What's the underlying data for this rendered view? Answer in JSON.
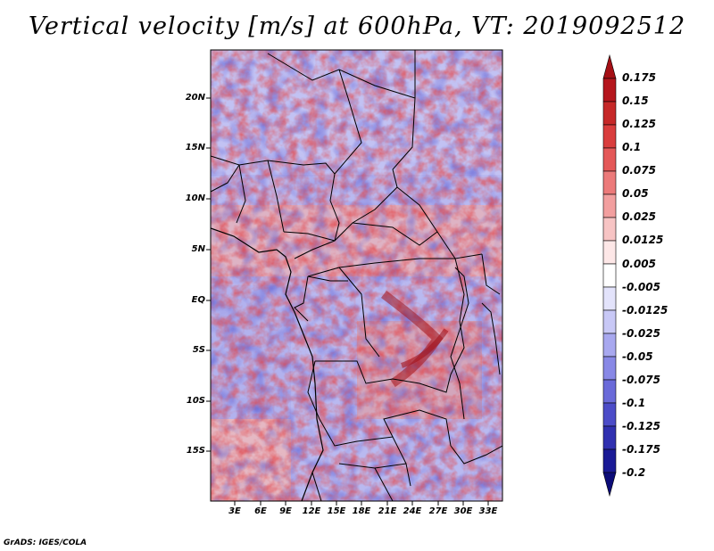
{
  "title": "Vertical velocity [m/s] at 600hPa, VT: 2019092512",
  "credit": "GrADS: IGES/COLA",
  "map": {
    "lat_labels": [
      "20N",
      "15N",
      "10N",
      "5N",
      "EQ",
      "5S",
      "10S",
      "15S"
    ],
    "lon_labels": [
      "3E",
      "6E",
      "9E",
      "12E",
      "15E",
      "18E",
      "21E",
      "24E",
      "27E",
      "30E",
      "33E"
    ],
    "colorbar": {
      "levels": [
        "0.175",
        "0.15",
        "0.125",
        "0.1",
        "0.075",
        "0.05",
        "0.025",
        "0.0125",
        "0.005",
        "-0.005",
        "-0.0125",
        "-0.025",
        "-0.05",
        "-0.075",
        "-0.1",
        "-0.125",
        "-0.175",
        "-0.2"
      ],
      "colors": [
        "#a50f15",
        "#b5161d",
        "#c62828",
        "#d93d3d",
        "#e45858",
        "#ec7a7a",
        "#f29f9f",
        "#f7c4c4",
        "#fde7e7",
        "#ffffff",
        "#e3e3fb",
        "#c8c8f6",
        "#a8a8ef",
        "#8888e6",
        "#6a6ad9",
        "#4c4cc8",
        "#3030b0",
        "#1a1a96",
        "#0c0c78"
      ]
    }
  }
}
